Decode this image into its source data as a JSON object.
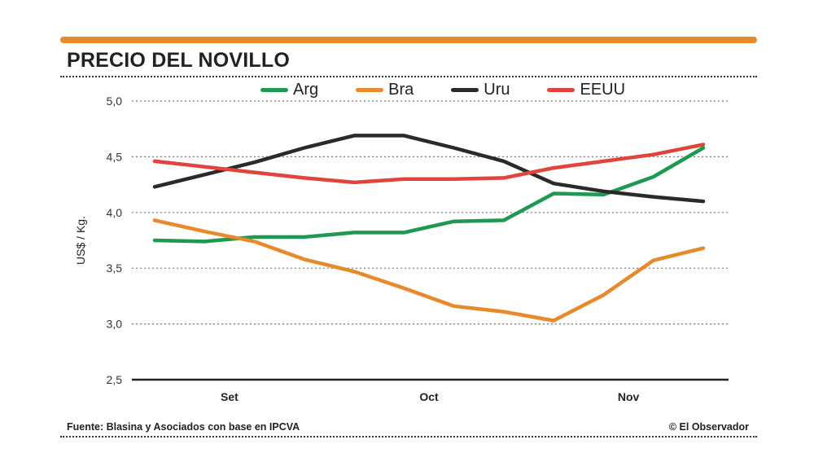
{
  "header": {
    "title": "PRECIO DEL NOVILLO"
  },
  "footer": {
    "source": "Fuente: Blasina y Asociados con base en IPCVA",
    "credit": "© El Observador"
  },
  "colors": {
    "accent": "#e8892b",
    "Arg": "#1e9a50",
    "Bra": "#e8892b",
    "Uru": "#2a2a2a",
    "EEUU": "#e0443a"
  },
  "chart_data": {
    "type": "line",
    "title": "PRECIO DEL NOVILLO",
    "ylabel": "US$ / Kg.",
    "xlabel": "",
    "ylim": [
      2.5,
      5.0
    ],
    "yticks": [
      "2,5",
      "3,0",
      "3,5",
      "4,0",
      "4,5",
      "5,0"
    ],
    "ytick_values": [
      2.5,
      3.0,
      3.5,
      4.0,
      4.5,
      5.0
    ],
    "xtick_labels": [
      "Set",
      "Oct",
      "Nov"
    ],
    "xtick_positions": [
      1.5,
      5.5,
      9.5
    ],
    "x": [
      0,
      1,
      2,
      3,
      4,
      5,
      6,
      7,
      8,
      9,
      10,
      11
    ],
    "grid": true,
    "legend_position": "top",
    "series": [
      {
        "name": "Arg",
        "values": [
          3.75,
          3.74,
          3.78,
          3.78,
          3.82,
          3.82,
          3.92,
          3.93,
          4.17,
          4.16,
          4.32,
          4.58
        ]
      },
      {
        "name": "Bra",
        "values": [
          3.93,
          3.83,
          3.74,
          3.58,
          3.47,
          3.32,
          3.16,
          3.11,
          3.03,
          3.26,
          3.57,
          3.68
        ]
      },
      {
        "name": "Uru",
        "values": [
          4.23,
          4.34,
          4.45,
          4.58,
          4.69,
          4.69,
          4.58,
          4.46,
          4.26,
          4.19,
          4.14,
          4.1
        ]
      },
      {
        "name": "EEUU",
        "values": [
          4.46,
          4.41,
          4.36,
          4.31,
          4.27,
          4.3,
          4.3,
          4.31,
          4.4,
          4.46,
          4.52,
          4.61
        ]
      }
    ]
  }
}
